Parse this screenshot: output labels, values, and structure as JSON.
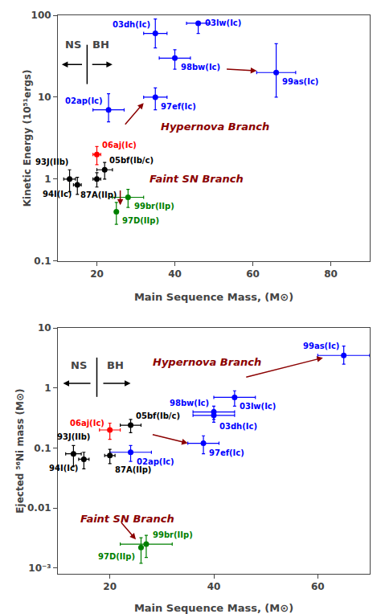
{
  "chart_data": [
    {
      "type": "scatter",
      "xlabel": "Main Sequence Mass, (M⊙)",
      "ylabel": "Kinetic Energy (10⁵¹ergs)",
      "log": "y",
      "grid": false,
      "xlim": [
        10,
        90
      ],
      "xticks": [
        20,
        40,
        60,
        80
      ],
      "ylim": [
        0.1,
        100
      ],
      "yticks": [
        0.1,
        1,
        10,
        100
      ],
      "points": [
        {
          "name": "03dh(Ic)",
          "x": 35,
          "y": 60,
          "xerr": [
            3,
            3
          ],
          "yerr": [
            20,
            30
          ],
          "color": "blue"
        },
        {
          "name": "03lw(Ic)",
          "x": 46,
          "y": 80,
          "xerr": [
            3,
            3
          ],
          "yerr": [
            20,
            0
          ],
          "color": "blue"
        },
        {
          "name": "98bw(Ic)",
          "x": 40,
          "y": 30,
          "xerr": [
            4,
            4
          ],
          "yerr": [
            8,
            8
          ],
          "color": "blue"
        },
        {
          "name": "97ef(Ic)",
          "x": 35,
          "y": 10,
          "xerr": [
            3,
            3
          ],
          "yerr": [
            3,
            3
          ],
          "color": "blue"
        },
        {
          "name": "02ap(Ic)",
          "x": 23,
          "y": 7,
          "xerr": [
            4,
            4
          ],
          "yerr": [
            2,
            4
          ],
          "color": "blue"
        },
        {
          "name": "99as(Ic)",
          "x": 66,
          "y": 20,
          "xerr": [
            5,
            5
          ],
          "yerr": [
            10,
            25
          ],
          "color": "blue"
        },
        {
          "name": "06aj(Ic)",
          "x": 20,
          "y": 2.0,
          "xerr": [
            1,
            1
          ],
          "yerr": [
            0.5,
            0.5
          ],
          "color": "red"
        },
        {
          "name": "93J(IIb)",
          "x": 13,
          "y": 1.0,
          "xerr": [
            1.5,
            1.5
          ],
          "yerr": [
            0.3,
            0.3
          ],
          "color": "black"
        },
        {
          "name": "05bf(Ib/c)",
          "x": 22,
          "y": 1.3,
          "xerr": [
            2,
            2
          ],
          "yerr": [
            0.3,
            0.3
          ],
          "color": "black"
        },
        {
          "name": "87A(IIp)",
          "x": 20,
          "y": 1.0,
          "xerr": [
            1,
            1
          ],
          "yerr": [
            0.2,
            0.2
          ],
          "color": "black"
        },
        {
          "name": "94I(Ic)",
          "x": 15,
          "y": 0.85,
          "xerr": [
            1,
            1
          ],
          "yerr": [
            0.2,
            0.2
          ],
          "color": "black"
        },
        {
          "name": "99br(IIp)",
          "x": 28,
          "y": 0.6,
          "xerr": [
            4,
            4
          ],
          "yerr": [
            0.15,
            0.15
          ],
          "color": "green"
        },
        {
          "name": "97D(IIp)",
          "x": 25,
          "y": 0.4,
          "xerr": [
            0,
            0
          ],
          "yerr": [
            0.12,
            0.12
          ],
          "color": "green"
        }
      ],
      "annotations": [
        {
          "text": "Hypernova Branch",
          "x": 36,
          "y": 3.5,
          "color": "#8B0000"
        },
        {
          "text": "Faint SN Branch",
          "x": 33,
          "y": 0.82,
          "color": "#8B0000"
        },
        {
          "text": "NS",
          "x": 14,
          "y": 35
        },
        {
          "text": "BH",
          "x": 21,
          "y": 35
        }
      ],
      "arrows": [
        {
          "x1": 27,
          "y1": 4.5,
          "x2": 32,
          "y2": 8.5,
          "color": "#8B0000"
        },
        {
          "x1": 26,
          "y1": 0.75,
          "x2": 26,
          "y2": 0.48,
          "color": "#8B0000"
        },
        {
          "x1": 53,
          "y1": 22,
          "x2": 61,
          "y2": 21,
          "color": "#8B0000"
        },
        {
          "x1": 16.5,
          "y1": 25,
          "x2": 11,
          "y2": 25,
          "color": "black"
        },
        {
          "x1": 18.5,
          "y1": 25,
          "x2": 24,
          "y2": 25,
          "color": "black"
        }
      ],
      "divider": {
        "x": 17.5,
        "color": "black"
      }
    },
    {
      "type": "scatter",
      "xlabel": "Main Sequence Mass, (M⊙)",
      "ylabel": "Ejected ⁵⁶Ni mass (M⊙)",
      "log": "y",
      "grid": false,
      "xlim": [
        10,
        70
      ],
      "xticks": [
        20,
        40,
        60
      ],
      "ylim": [
        0.0008,
        10
      ],
      "yticks": [
        {
          "value": 0.001,
          "label": "10⁻³"
        },
        0.01,
        0.1,
        1,
        10
      ],
      "points": [
        {
          "name": "98bw(Ic)",
          "x": 40,
          "y": 0.4,
          "xerr": [
            4,
            4
          ],
          "yerr": [
            0.1,
            0.1
          ],
          "color": "blue"
        },
        {
          "name": "03lw(Ic)",
          "x": 44,
          "y": 0.7,
          "xerr": [
            4,
            4
          ],
          "yerr": [
            0.2,
            0.2
          ],
          "color": "blue"
        },
        {
          "name": "03dh(Ic)",
          "x": 40,
          "y": 0.35,
          "xerr": [
            4,
            4
          ],
          "yerr": [
            0.08,
            0.08
          ],
          "color": "blue"
        },
        {
          "name": "97ef(Ic)",
          "x": 38,
          "y": 0.12,
          "xerr": [
            3,
            3
          ],
          "yerr": [
            0.04,
            0.04
          ],
          "color": "blue"
        },
        {
          "name": "02ap(Ic)",
          "x": 24,
          "y": 0.085,
          "xerr": [
            4,
            4
          ],
          "yerr": [
            0.025,
            0.025
          ],
          "color": "blue"
        },
        {
          "name": "99as(Ic)",
          "x": 65,
          "y": 3.5,
          "xerr": [
            5,
            5
          ],
          "yerr": [
            1.0,
            1.5
          ],
          "color": "blue"
        },
        {
          "name": "06aj(Ic)",
          "x": 20,
          "y": 0.2,
          "xerr": [
            2,
            2
          ],
          "yerr": [
            0.06,
            0.06
          ],
          "color": "red"
        },
        {
          "name": "93J(IIb)",
          "x": 13,
          "y": 0.08,
          "xerr": [
            1.5,
            1.5
          ],
          "yerr": [
            0.03,
            0.03
          ],
          "color": "black"
        },
        {
          "name": "05bf(Ib/c)",
          "x": 24,
          "y": 0.24,
          "xerr": [
            2,
            2
          ],
          "yerr": [
            0.06,
            0.06
          ],
          "color": "black"
        },
        {
          "name": "87A(IIp)",
          "x": 20,
          "y": 0.075,
          "xerr": [
            1,
            1
          ],
          "yerr": [
            0.02,
            0.02
          ],
          "color": "black"
        },
        {
          "name": "94I(Ic)",
          "x": 15,
          "y": 0.065,
          "xerr": [
            1,
            1
          ],
          "yerr": [
            0.02,
            0.02
          ],
          "color": "black"
        },
        {
          "name": "99br(IIp)",
          "x": 27,
          "y": 0.0025,
          "xerr": [
            5,
            5
          ],
          "yerr": [
            0.001,
            0.001
          ],
          "color": "green"
        },
        {
          "name": "97D(IIp)",
          "x": 26,
          "y": 0.0022,
          "xerr": [
            0,
            0
          ],
          "yerr": [
            0.001,
            0.001
          ],
          "color": "green"
        }
      ],
      "annotations": [
        {
          "text": "Hypernova Branch",
          "x": 28,
          "y": 2.0,
          "color": "#8B0000"
        },
        {
          "text": "Faint SN Branch",
          "x": 14,
          "y": 0.005,
          "color": "#8B0000"
        },
        {
          "text": "NS",
          "x": 14,
          "y": 1.8
        },
        {
          "text": "BH",
          "x": 21,
          "y": 1.8
        }
      ],
      "arrows": [
        {
          "x1": 28,
          "y1": 0.17,
          "x2": 35,
          "y2": 0.12,
          "color": "#8B0000"
        },
        {
          "x1": 22,
          "y1": 0.006,
          "x2": 25,
          "y2": 0.003,
          "color": "#8B0000"
        },
        {
          "x1": 46,
          "y1": 1.5,
          "x2": 61,
          "y2": 3.2,
          "color": "#8B0000"
        },
        {
          "x1": 16.5,
          "y1": 1.2,
          "x2": 11,
          "y2": 1.2,
          "color": "black"
        },
        {
          "x1": 18.5,
          "y1": 1.2,
          "x2": 24,
          "y2": 1.2,
          "color": "black"
        }
      ],
      "divider": {
        "x": 17.5,
        "color": "black"
      }
    }
  ]
}
